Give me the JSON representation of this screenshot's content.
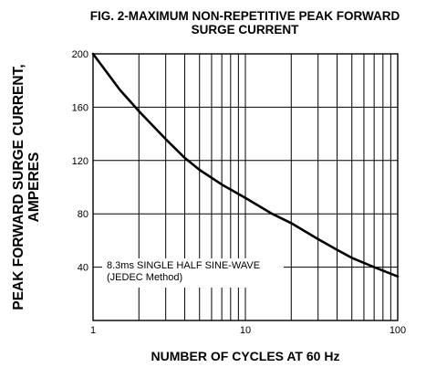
{
  "chart_data": {
    "type": "line",
    "title": "FIG. 2-MAXIMUM NON-REPETITIVE PEAK FORWARD",
    "subtitle": "SURGE CURRENT",
    "ylabel_line1": "PEAK FORWARD SURGE CURRENT,",
    "ylabel_line2": "AMPERES",
    "xlabel": "NUMBER OF CYCLES AT 60 Hz",
    "x_scale": "log",
    "xlim": [
      1,
      100
    ],
    "ylim": [
      0,
      200
    ],
    "x_ticks": [
      1,
      10,
      100
    ],
    "x_tick_labels": [
      "1",
      "10",
      "100"
    ],
    "y_ticks": [
      40,
      80,
      120,
      160,
      200
    ],
    "y_tick_labels": [
      "40",
      "80",
      "120",
      "160",
      "200"
    ],
    "grid": true,
    "series": [
      {
        "x": [
          1,
          1.5,
          2,
          3,
          4,
          5,
          7,
          10,
          15,
          20,
          30,
          40,
          50,
          70,
          100
        ],
        "y": [
          200,
          173,
          157,
          136,
          122,
          113,
          102,
          92,
          80,
          73,
          61,
          53,
          47,
          40,
          33
        ]
      }
    ],
    "annotation_line1": "8.3ms SINGLE HALF SINE-WAVE",
    "annotation_line2": "(JEDEC Method)"
  }
}
